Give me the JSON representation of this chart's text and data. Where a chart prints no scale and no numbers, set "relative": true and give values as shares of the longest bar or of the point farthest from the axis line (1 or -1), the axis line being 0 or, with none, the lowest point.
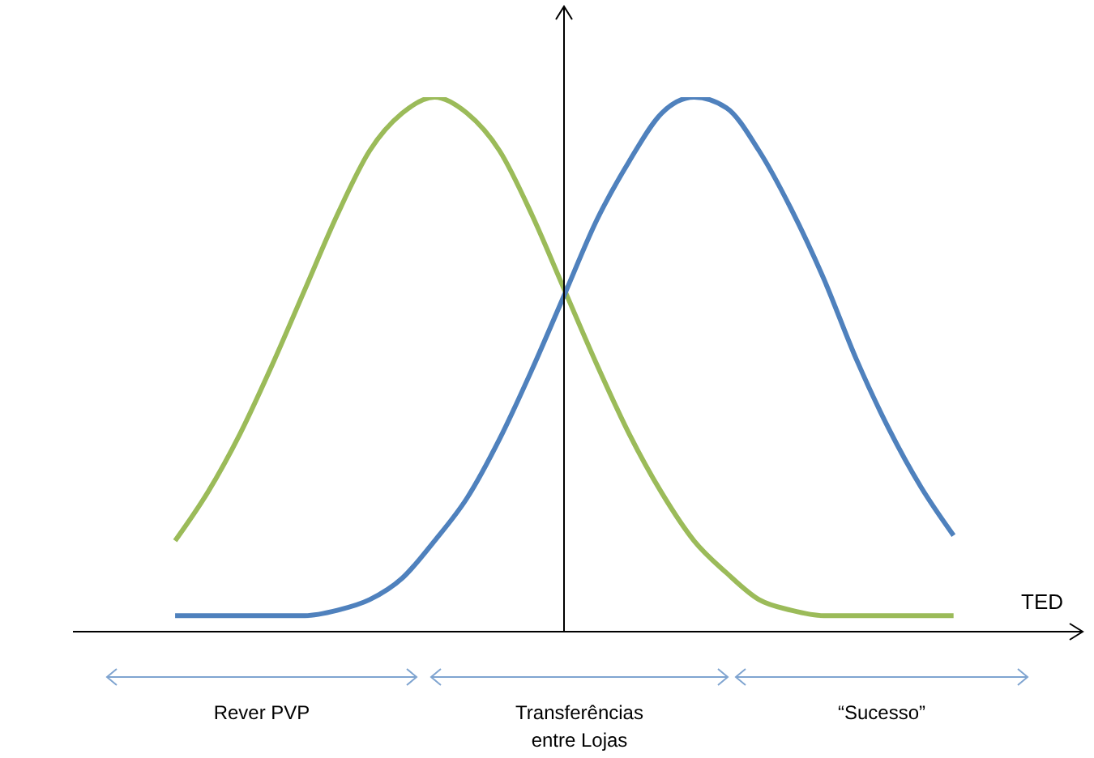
{
  "chart_data": {
    "type": "line",
    "relative": true,
    "xlabel": "TED",
    "categories": [
      null,
      null,
      null,
      null,
      null,
      null,
      null,
      null,
      null,
      null,
      null,
      null,
      null,
      null,
      null,
      null,
      null,
      null,
      null,
      null,
      null,
      null,
      null,
      null,
      null
    ],
    "series": [
      {
        "color": "#9bbb59",
        "values": [
          0.17,
          0.26,
          0.37,
          0.5,
          0.64,
          0.78,
          0.9,
          0.97,
          1.0,
          0.97,
          0.9,
          0.78,
          0.64,
          0.5,
          0.37,
          0.26,
          0.17,
          0.11,
          0.06,
          0.04,
          0.03,
          0.03,
          0.03,
          0.03,
          0.03
        ]
      },
      {
        "color": "#4f81bd",
        "values": [
          0.03,
          0.03,
          0.03,
          0.03,
          0.03,
          0.04,
          0.06,
          0.1,
          0.17,
          0.25,
          0.36,
          0.49,
          0.63,
          0.77,
          0.88,
          0.97,
          1.0,
          0.98,
          0.9,
          0.79,
          0.66,
          0.51,
          0.38,
          0.27,
          0.18
        ]
      }
    ],
    "annotations": [
      "Rever PVP",
      "Transferências entre Lojas",
      "“Sucesso”"
    ],
    "marker": "none",
    "grid": false,
    "legend": false
  }
}
